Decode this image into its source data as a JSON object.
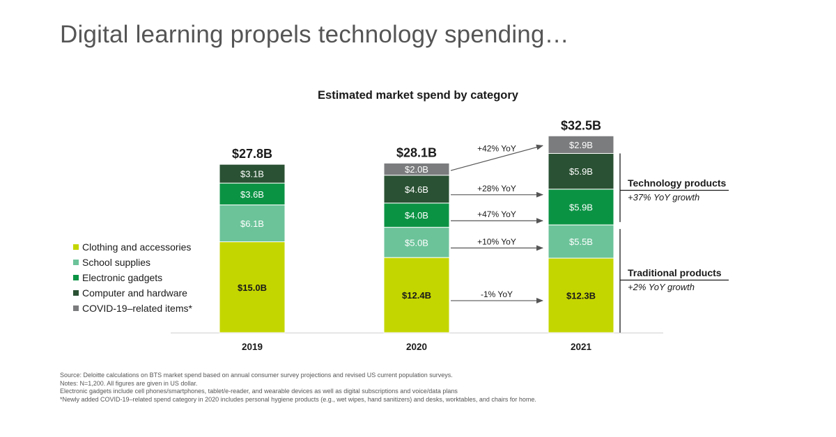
{
  "headline": "Digital learning propels technology spending…",
  "chart_data": {
    "type": "stacked_bar",
    "title": "Estimated market spend by category",
    "categories": [
      "2019",
      "2020",
      "2021"
    ],
    "unit": "$B",
    "totals": [
      {
        "value": 27.8,
        "label": "$27.8B"
      },
      {
        "value": 28.1,
        "label": "$28.1B"
      },
      {
        "value": 32.5,
        "label": "$32.5B"
      }
    ],
    "series": [
      {
        "name": "Clothing and accessories",
        "color": "#c4d600",
        "values": [
          15.0,
          12.4,
          12.3
        ],
        "labels": [
          "$15.0B",
          "$12.4B",
          "$12.3B"
        ]
      },
      {
        "name": "School supplies",
        "color": "#6cc39a",
        "values": [
          6.1,
          5.0,
          5.5
        ],
        "labels": [
          "$6.1B",
          "$5.0B",
          "$5.5B"
        ]
      },
      {
        "name": "Electronic gadgets",
        "color": "#0b9344",
        "values": [
          3.6,
          4.0,
          5.9
        ],
        "labels": [
          "$3.6B",
          "$4.0B",
          "$5.9B"
        ]
      },
      {
        "name": "Computer and hardware",
        "color": "#2a5133",
        "values": [
          3.1,
          4.6,
          5.9
        ],
        "labels": [
          "$3.1B",
          "$4.6B",
          "$5.9B"
        ]
      },
      {
        "name": "COVID-19–related items*",
        "color": "#7b7c7e",
        "values": [
          0,
          2.0,
          2.9
        ],
        "labels": [
          "",
          "$2.0B",
          "$2.9B"
        ]
      }
    ],
    "yoy_labels": [
      "-1% YoY",
      "+10% YoY",
      "+47% YoY",
      "+28% YoY",
      "+42% YoY"
    ],
    "groups": [
      {
        "title": "Technology products",
        "subtitle": "+37% YoY growth"
      },
      {
        "title": "Traditional products",
        "subtitle": "+2% YoY growth"
      }
    ],
    "legend_position": "left"
  },
  "footnotes": [
    "Source: Deloitte calculations on BTS market spend based on annual consumer survey projections and revised US current population surveys.",
    "Notes: N=1,200. All figures are given in US dollar.",
    "Electronic gadgets include cell phones/smartphones, tablet/e-reader, and wearable devices as well as digital subscriptions and voice/data plans",
    "*Newly added COVID-19–related spend category in 2020 includes personal hygiene products (e.g., wet wipes, hand sanitizers) and desks, worktables, and chairs for home."
  ]
}
